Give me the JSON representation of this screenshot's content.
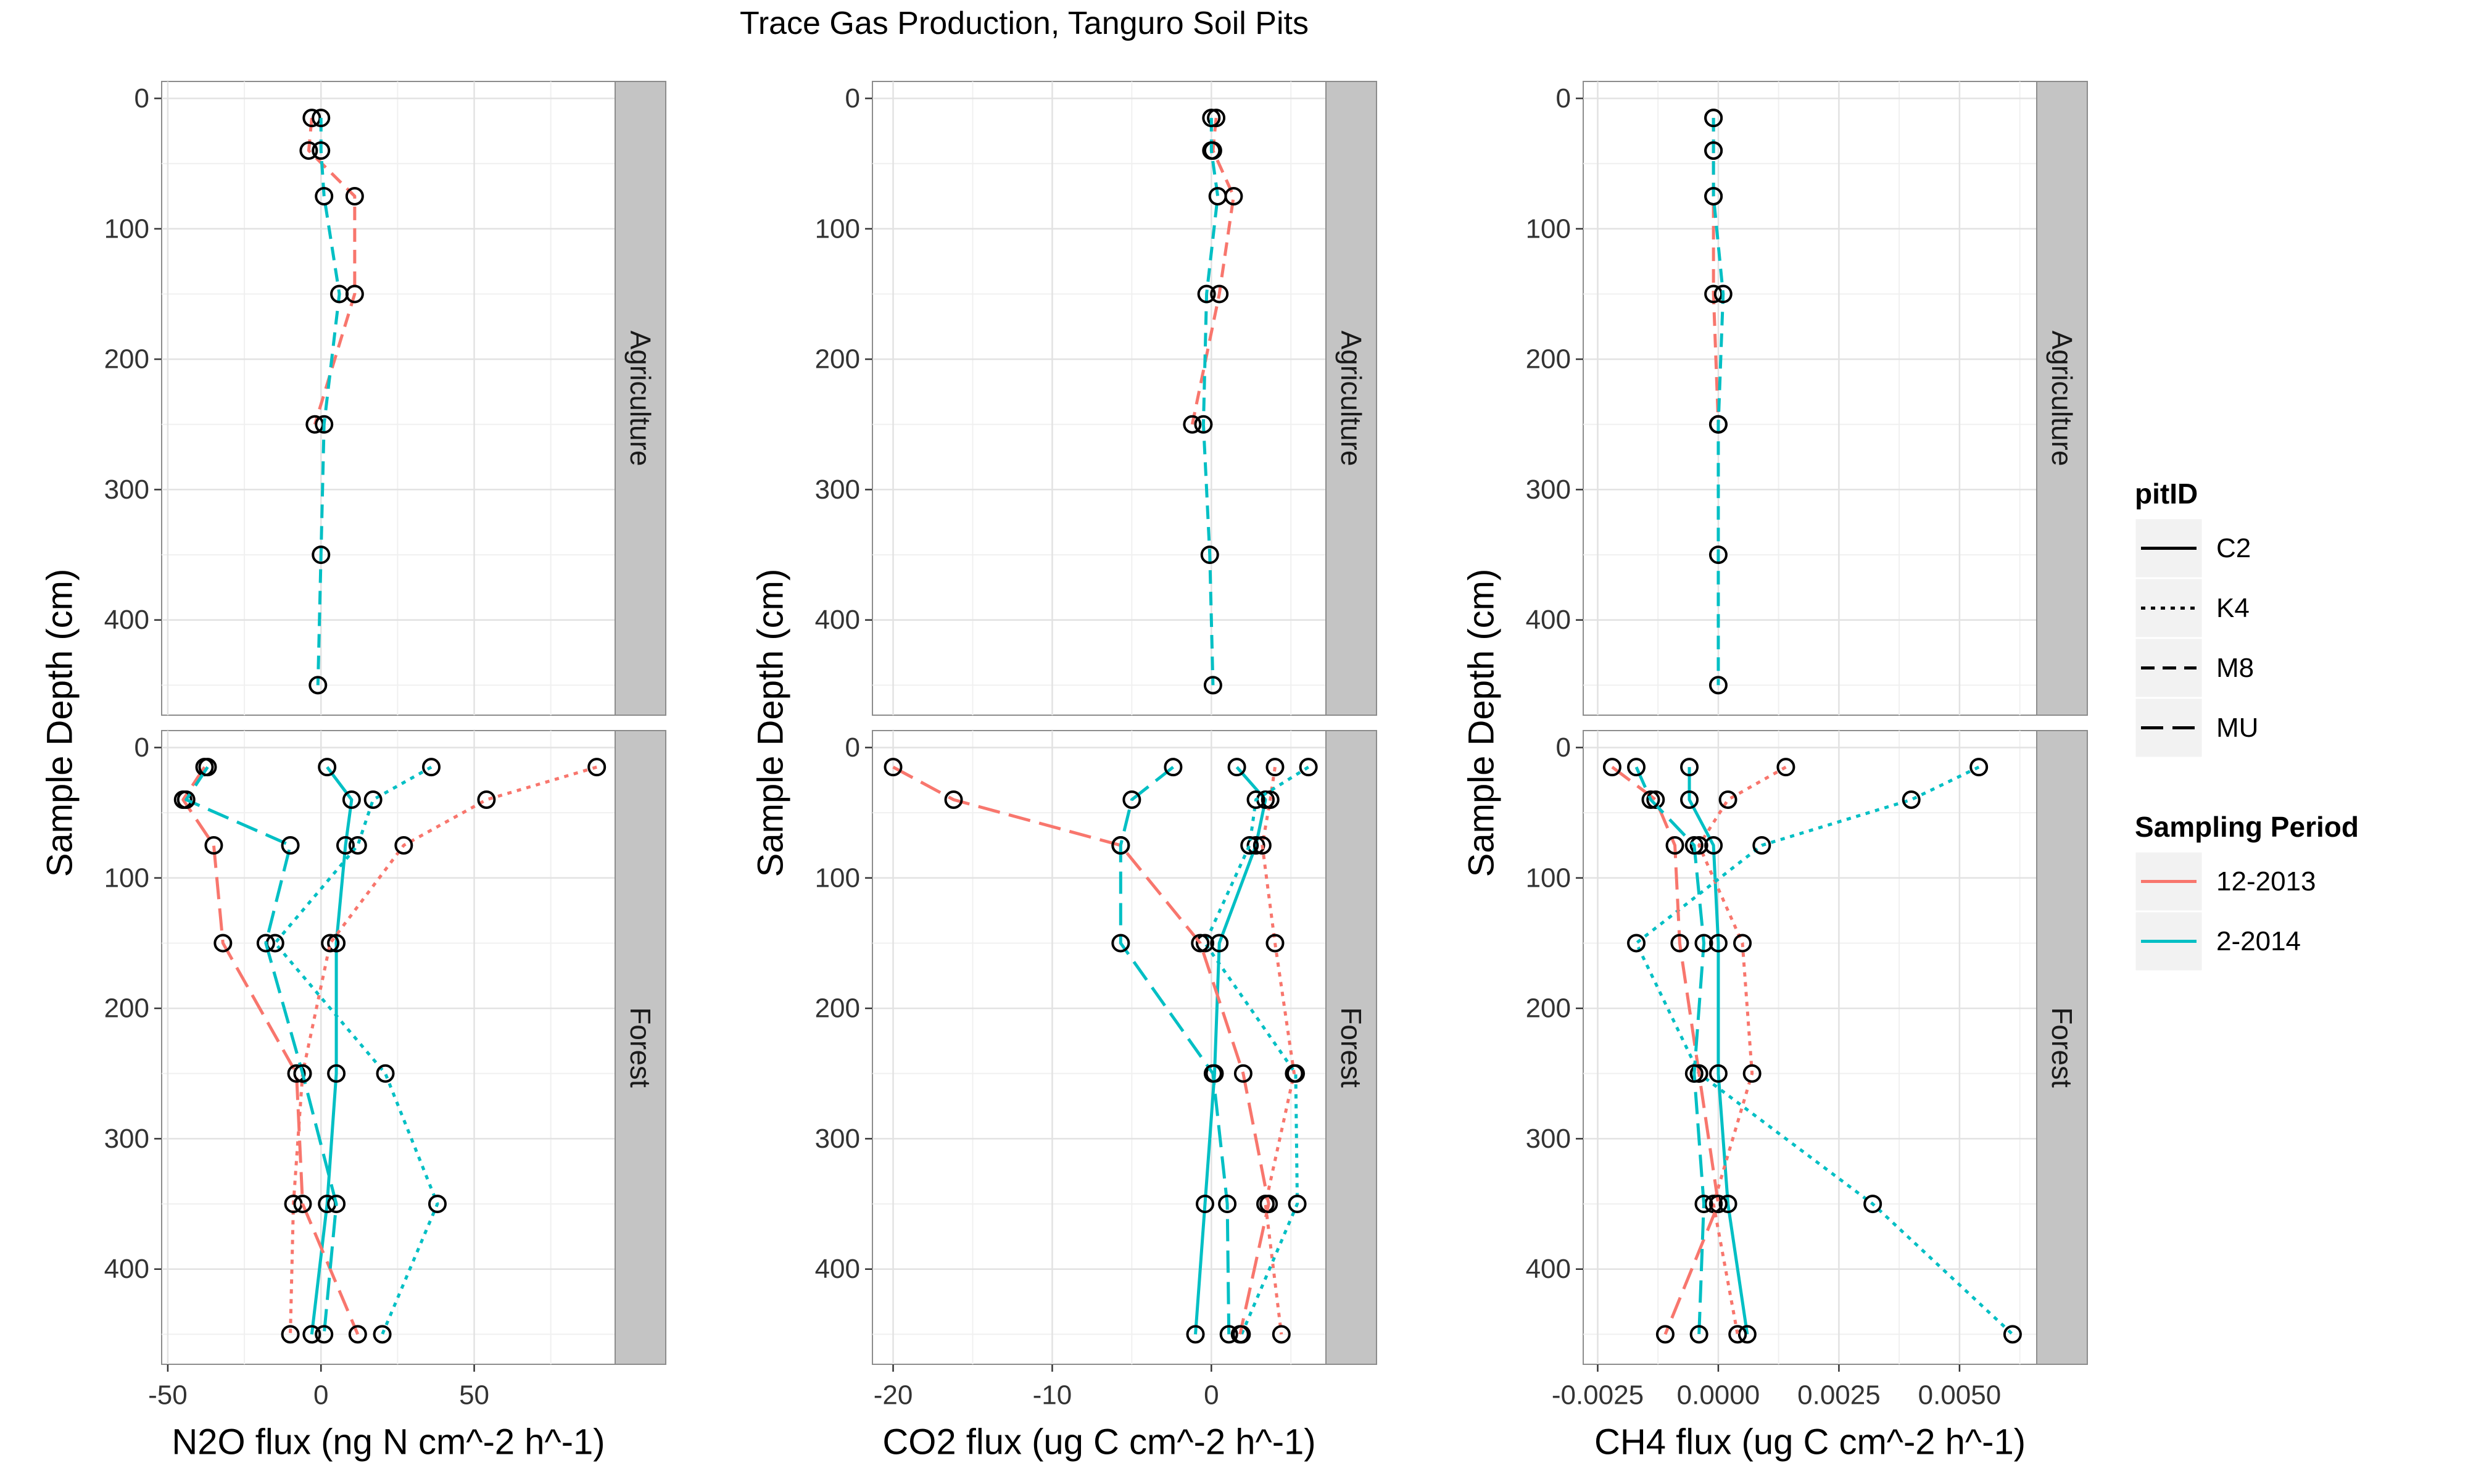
{
  "chart_data": {
    "type": "line",
    "title": "Trace Gas Production, Tanguro Soil Pits",
    "ylabel": "Sample Depth (cm)",
    "y_ticks": [
      0,
      100,
      200,
      300,
      400
    ],
    "ylim": [
      -13,
      473
    ],
    "y_reversed": true,
    "row_labels": [
      "Agriculture",
      "Forest"
    ],
    "panels": [
      {
        "xlabel": "N2O flux (ng N cm^-2 h^-1)",
        "xlim": [
          -52,
          96
        ],
        "x_ticks": [
          -50,
          0,
          50
        ],
        "x_tick_labels": [
          "-50",
          "0",
          "50"
        ]
      },
      {
        "xlabel": "CO2 flux (ug C cm^-2 h^-1)",
        "xlim": [
          -21.3,
          7.2
        ],
        "x_ticks": [
          -20,
          -10,
          0
        ],
        "x_tick_labels": [
          "-20",
          "-10",
          "0"
        ]
      },
      {
        "xlabel": "CH4 flux (ug C cm^-2 h^-1)",
        "xlim": [
          -0.0028,
          0.0066
        ],
        "x_ticks": [
          -0.0025,
          0.0,
          0.0025,
          0.005
        ],
        "x_tick_labels": [
          "-0.0025",
          "0.0000",
          "0.0025",
          "0.0050"
        ]
      }
    ],
    "legend": {
      "position": "right",
      "pit_title": "pitID",
      "pit_items": [
        {
          "label": "C2",
          "dash": "solid"
        },
        {
          "label": "K4",
          "dash": "dotted"
        },
        {
          "label": "M8",
          "dash": "dashed"
        },
        {
          "label": "MU",
          "dash": "longdash"
        }
      ],
      "period_title": "Sampling Period",
      "period_items": [
        {
          "label": "12-2013",
          "color": "#F8766D"
        },
        {
          "label": "2-2014",
          "color": "#00BFC4"
        }
      ]
    },
    "series": [
      {
        "row": "Agriculture",
        "pit": "M8",
        "period": "12-2013",
        "depths": [
          15,
          40,
          75,
          150,
          250
        ],
        "values": [
          [
            -3,
            -4,
            11,
            11,
            -2
          ],
          [
            0.3,
            0.1,
            1.4,
            0.5,
            -1.2
          ],
          [
            -0.0001,
            -0.0001,
            -0.0001,
            -0.0001,
            0.0
          ]
        ]
      },
      {
        "row": "Agriculture",
        "pit": "M8",
        "period": "2-2014",
        "depths": [
          15,
          40,
          75,
          150,
          250,
          350,
          450
        ],
        "values": [
          [
            0,
            0,
            1,
            6,
            1,
            0,
            -1
          ],
          [
            0.0,
            0.0,
            0.4,
            -0.3,
            -0.5,
            -0.1,
            0.1
          ],
          [
            -0.0001,
            -0.0001,
            -0.0001,
            0.0001,
            0.0,
            0.0,
            0.0
          ]
        ]
      },
      {
        "row": "Forest",
        "pit": "C2",
        "period": "2-2014",
        "depths": [
          15,
          40,
          75,
          150,
          250,
          350,
          450
        ],
        "values": [
          [
            2,
            10,
            8,
            5,
            5,
            2,
            -3
          ],
          [
            1.6,
            3.4,
            2.8,
            0.5,
            0.2,
            -0.4,
            -1.0
          ],
          [
            -0.0006,
            -0.0006,
            -0.0001,
            0.0,
            0.0,
            0.0002,
            0.0006
          ]
        ]
      },
      {
        "row": "Forest",
        "pit": "K4",
        "period": "12-2013",
        "depths": [
          15,
          40,
          75,
          150,
          250,
          350,
          450
        ],
        "values": [
          [
            90,
            54,
            27,
            3,
            -6,
            -9,
            -10
          ],
          [
            4.0,
            3.7,
            3.2,
            4.0,
            5.2,
            3.4,
            4.4
          ],
          [
            0.0014,
            0.0002,
            -0.0004,
            0.0005,
            0.0007,
            -0.0001,
            0.0004
          ]
        ]
      },
      {
        "row": "Forest",
        "pit": "K4",
        "period": "2-2014",
        "depths": [
          15,
          40,
          75,
          150,
          250,
          350,
          450
        ],
        "values": [
          [
            36,
            17,
            12,
            -15,
            21,
            38,
            20
          ],
          [
            6.1,
            2.8,
            2.4,
            -0.4,
            5.3,
            5.4,
            1.9
          ],
          [
            0.0054,
            0.004,
            0.0009,
            -0.0017,
            -0.0004,
            0.0032,
            0.0061
          ]
        ]
      },
      {
        "row": "Forest",
        "pit": "MU",
        "period": "12-2013",
        "depths": [
          15,
          40,
          75,
          150,
          250,
          350,
          450
        ],
        "values": [
          [
            -38,
            -45,
            -35,
            -32,
            -8,
            -6,
            12
          ],
          [
            -20.0,
            -16.2,
            -5.7,
            -0.7,
            2.0,
            3.6,
            1.8
          ],
          [
            -0.0022,
            -0.0013,
            -0.0009,
            -0.0008,
            -0.0004,
            0.0,
            -0.0011
          ]
        ]
      },
      {
        "row": "Forest",
        "pit": "MU",
        "period": "2-2014",
        "depths": [
          15,
          40,
          75,
          150,
          250,
          350,
          450
        ],
        "values": [
          [
            -37,
            -44,
            -10,
            -18,
            -6,
            5,
            1
          ],
          [
            -2.4,
            -5.0,
            -5.7,
            -5.7,
            0.1,
            1.0,
            1.1
          ],
          [
            -0.0017,
            -0.0014,
            -0.0005,
            -0.0003,
            -0.0005,
            -0.0003,
            -0.0004
          ]
        ]
      }
    ]
  }
}
